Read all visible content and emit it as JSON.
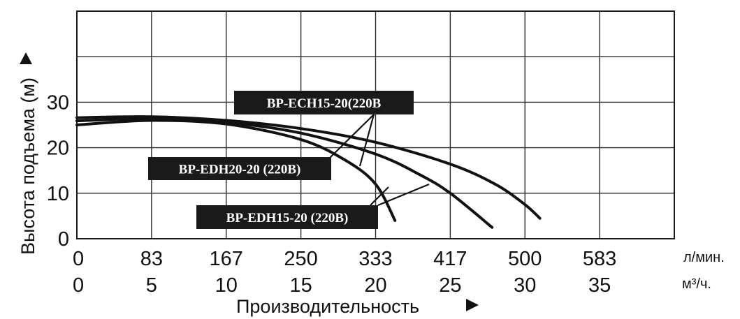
{
  "chart_data": {
    "type": "line",
    "title": "",
    "ylabel": "Высота подъема (м)",
    "xlabel": "Производительность",
    "ylim": [
      0,
      50
    ],
    "yticks": [
      0,
      10,
      20,
      30
    ],
    "x_axes": [
      {
        "unit": "л/мин.",
        "ticks": [
          "0",
          "83",
          "167",
          "250",
          "333",
          "417",
          "500",
          "583"
        ]
      },
      {
        "unit": "м³/ч.",
        "ticks": [
          "0",
          "5",
          "10",
          "15",
          "20",
          "25",
          "30",
          "35"
        ]
      }
    ],
    "xlim_m3h": [
      0,
      40
    ],
    "grid": true,
    "series": [
      {
        "name": "BP-ECH15-20(220B",
        "x": [
          0,
          5,
          10,
          15,
          20,
          25,
          28,
          30,
          31
        ],
        "y": [
          26.6,
          26.8,
          26,
          24.2,
          21.2,
          16.4,
          12,
          7.5,
          4.5
        ]
      },
      {
        "name": "BP-EDH20-20 (220B)",
        "x": [
          0,
          5,
          10,
          15,
          20,
          23,
          25,
          27.8
        ],
        "y": [
          25.9,
          26.4,
          25.6,
          23.2,
          18.6,
          14,
          10,
          2.5
        ]
      },
      {
        "name": "BP-EDH15-20 (220B)",
        "x": [
          0,
          5,
          10,
          15,
          18,
          20,
          21.3
        ],
        "y": [
          25,
          26,
          25.2,
          21.8,
          17.2,
          12,
          4
        ]
      }
    ]
  }
}
